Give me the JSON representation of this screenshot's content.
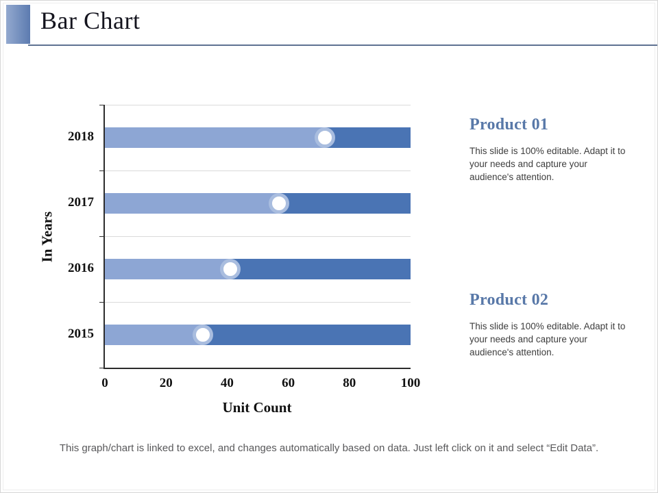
{
  "slide": {
    "title": "Bar Chart",
    "footer": "This graph/chart is linked to excel, and changes automatically based on data. Just left click on it and select “Edit Data”."
  },
  "products": [
    {
      "heading": "Product 01",
      "body": "This slide is 100% editable. Adapt it to your needs and capture your audience's attention."
    },
    {
      "heading": "Product 02",
      "body": "This slide is 100% editable. Adapt it to your needs and capture your audience's attention."
    }
  ],
  "chart_data": {
    "type": "bar",
    "orientation": "horizontal",
    "stacked": true,
    "title": "",
    "xlabel": "Unit Count",
    "ylabel": "In Years",
    "categories": [
      "2018",
      "2017",
      "2016",
      "2015"
    ],
    "series": [
      {
        "name": "Product 01",
        "color": "#8da6d4",
        "values": [
          72,
          57,
          41,
          32
        ]
      },
      {
        "name": "Product 02",
        "color": "#4a74b4",
        "values": [
          28,
          43,
          59,
          68
        ]
      }
    ],
    "xlim": [
      0,
      100
    ],
    "xticks": [
      0,
      20,
      40,
      60,
      80,
      100
    ],
    "grid": "horizontal category separators",
    "legend": "none",
    "marker": "white circle with light-blue ring at segment boundary",
    "marker_ring_color": "#a9bddf"
  },
  "colors": {
    "accent_gradient_start": "#93a9cf",
    "accent_gradient_end": "#5c7bb0",
    "divider": "#5e7191",
    "heading_blue": "#5878a8",
    "axis": "#2b2b2b",
    "gridline": "#dadada",
    "footer_text": "#58585a"
  }
}
